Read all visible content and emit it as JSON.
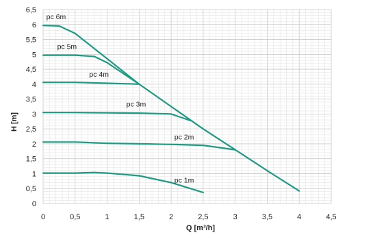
{
  "chart_data": {
    "type": "line",
    "title": "",
    "xlabel": "Q [m³/h]",
    "ylabel": "H [m]",
    "xlim": [
      0,
      4.5
    ],
    "ylim": [
      0,
      6.5
    ],
    "x_ticks": [
      "0",
      "0,5",
      "1",
      "1,5",
      "2",
      "2,5",
      "3",
      "3,5",
      "4",
      "4,5"
    ],
    "y_ticks": [
      "0",
      "0,5",
      "1",
      "1,5",
      "2",
      "2,5",
      "3",
      "3,5",
      "4",
      "4,5",
      "5",
      "5,5",
      "6",
      "6,5"
    ],
    "grid": true,
    "line_color": "#1f9a82",
    "series": [
      {
        "name": "pc 6m",
        "x": [
          0,
          0.25,
          0.5,
          1.0,
          1.5,
          2.0,
          2.5,
          3.0,
          3.5,
          4.0
        ],
        "y": [
          5.97,
          5.95,
          5.7,
          4.85,
          4.0,
          3.25,
          2.5,
          1.8,
          1.1,
          0.42
        ]
      },
      {
        "name": "pc 5m",
        "x": [
          0,
          0.5,
          0.8,
          1.0,
          1.5
        ],
        "y": [
          4.97,
          4.97,
          4.93,
          4.72,
          4.0
        ]
      },
      {
        "name": "pc 4m",
        "x": [
          0,
          0.5,
          1.0,
          1.5
        ],
        "y": [
          4.06,
          4.06,
          4.03,
          4.0
        ]
      },
      {
        "name": "pc 3m",
        "x": [
          0,
          0.5,
          1.0,
          1.5,
          2.0,
          2.3
        ],
        "y": [
          3.05,
          3.05,
          3.04,
          3.03,
          3.0,
          2.78
        ]
      },
      {
        "name": "pc 2m",
        "x": [
          0,
          0.5,
          1.0,
          1.5,
          2.0,
          2.5,
          3.0
        ],
        "y": [
          2.06,
          2.06,
          2.02,
          2.0,
          1.98,
          1.95,
          1.8
        ]
      },
      {
        "name": "pc 1m",
        "x": [
          0,
          0.5,
          0.8,
          1.0,
          1.5,
          2.0,
          2.5
        ],
        "y": [
          1.02,
          1.02,
          1.04,
          1.02,
          0.93,
          0.7,
          0.37
        ]
      }
    ]
  }
}
